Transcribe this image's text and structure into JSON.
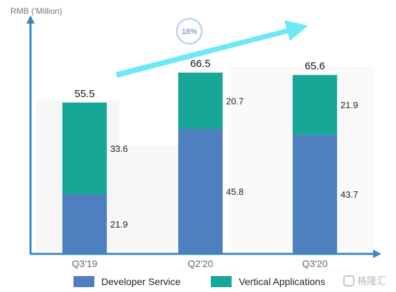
{
  "chart_data": {
    "type": "bar",
    "stacked": true,
    "ylabel": "RMB (’Million)",
    "categories": [
      "Q3'19",
      "Q2'20",
      "Q3'20"
    ],
    "series": [
      {
        "name": "Developer Service",
        "values": [
          21.9,
          45.8,
          43.7
        ],
        "color": "#4e7fbf"
      },
      {
        "name": "Vertical Applications",
        "values": [
          33.6,
          20.7,
          21.9
        ],
        "color": "#16a796"
      }
    ],
    "totals": [
      "55.5",
      "66.5",
      "65.6"
    ],
    "segment_labels": [
      [
        "21.9",
        "45.8",
        "43.7"
      ],
      [
        "33.6",
        "20.7",
        "21.9"
      ]
    ],
    "annotation": "18%",
    "ylim": [
      0,
      72
    ],
    "grid": false,
    "legend_position": "bottom"
  },
  "watermark": "格隆汇",
  "colors": {
    "axis": "#3a87c0",
    "arrow": "#6ee8f5",
    "circle": "#b9d5ec",
    "annotation_text": "#4a7fb5"
  }
}
